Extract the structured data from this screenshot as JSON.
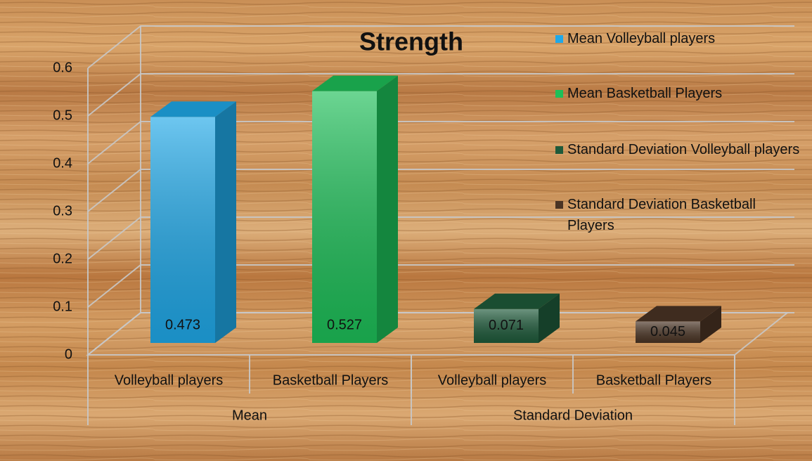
{
  "chart_data": {
    "type": "bar3d",
    "title": "Strength",
    "categories": [
      "Volleyball players",
      "Basketball Players",
      "Volleyball players",
      "Basketball Players"
    ],
    "category_groups": [
      "Mean",
      "Standard Deviation"
    ],
    "series": [
      {
        "name": "Mean Volleyball players",
        "color": "#1fa8e8",
        "values": [
          0.473,
          null,
          null,
          null
        ]
      },
      {
        "name": "Mean Basketball Players",
        "color": "#1dbf58",
        "values": [
          null,
          0.527,
          null,
          null
        ]
      },
      {
        "name": "Standard Deviation Volleyball players",
        "color": "#1e5a3a",
        "values": [
          null,
          null,
          0.071,
          null
        ]
      },
      {
        "name": "Standard Deviation Basketball Players",
        "color": "#4a3424",
        "values": [
          null,
          null,
          null,
          0.045
        ]
      }
    ],
    "ylim": [
      0,
      0.6
    ],
    "yticks": [
      0,
      0.1,
      0.2,
      0.3,
      0.4,
      0.5,
      0.6
    ],
    "grid": true,
    "legend": "right"
  }
}
